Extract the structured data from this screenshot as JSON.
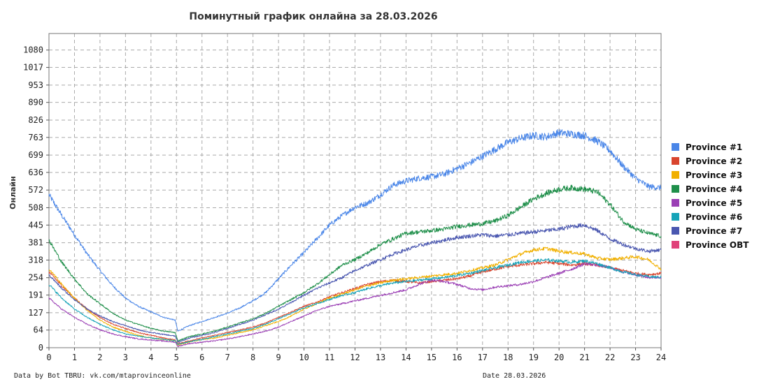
{
  "chart_data": {
    "type": "line",
    "title": "Поминутный график онлайна за 28.03.2026",
    "ylabel": "Онлайн",
    "xlabel": "",
    "xlim": [
      0,
      24
    ],
    "ylim": [
      0,
      1140
    ],
    "x_ticks": [
      0,
      1,
      2,
      3,
      4,
      5,
      6,
      7,
      8,
      9,
      10,
      11,
      12,
      13,
      14,
      15,
      16,
      17,
      18,
      19,
      20,
      21,
      22,
      23,
      24
    ],
    "y_ticks": [
      0,
      64,
      127,
      191,
      254,
      318,
      381,
      445,
      508,
      572,
      636,
      699,
      763,
      826,
      890,
      953,
      1017,
      1080
    ],
    "grid": true,
    "legend_position": "right",
    "series": [
      {
        "name": "Province #1",
        "color": "#4a86e8",
        "x": [
          0,
          0.5,
          1,
          1.5,
          2,
          2.5,
          3,
          3.5,
          4,
          4.5,
          4.95,
          5.05,
          5.5,
          6,
          6.5,
          7,
          7.5,
          8,
          8.5,
          9,
          9.5,
          10,
          10.5,
          11,
          11.5,
          12,
          12.5,
          13,
          13.5,
          14,
          14.5,
          15,
          15.5,
          16,
          16.5,
          17,
          17.5,
          18,
          18.5,
          19,
          19.5,
          20,
          20.5,
          21,
          21.5,
          22,
          22.5,
          23,
          23.5,
          24
        ],
        "y": [
          555,
          480,
          410,
          340,
          280,
          225,
          180,
          150,
          130,
          110,
          100,
          60,
          80,
          95,
          110,
          125,
          145,
          170,
          200,
          250,
          300,
          345,
          395,
          445,
          480,
          510,
          525,
          555,
          590,
          605,
          615,
          620,
          630,
          650,
          670,
          695,
          720,
          745,
          760,
          770,
          765,
          780,
          775,
          770,
          750,
          715,
          660,
          615,
          585,
          580
        ]
      },
      {
        "name": "Province #2",
        "color": "#d9452e",
        "x": [
          0,
          0.5,
          1,
          1.5,
          2,
          2.5,
          3,
          3.5,
          4,
          4.5,
          4.95,
          5.05,
          5.5,
          6,
          6.5,
          7,
          7.5,
          8,
          8.5,
          9,
          9.5,
          10,
          10.5,
          11,
          11.5,
          12,
          12.5,
          13,
          13.5,
          14,
          14.5,
          15,
          15.5,
          16,
          16.5,
          17,
          17.5,
          18,
          18.5,
          19,
          19.5,
          20,
          20.5,
          21,
          21.5,
          22,
          22.5,
          23,
          23.5,
          24
        ],
        "y": [
          275,
          225,
          180,
          140,
          110,
          85,
          70,
          55,
          45,
          35,
          28,
          15,
          25,
          35,
          45,
          55,
          65,
          75,
          90,
          110,
          130,
          150,
          165,
          185,
          200,
          215,
          230,
          240,
          245,
          240,
          235,
          240,
          245,
          250,
          260,
          275,
          285,
          295,
          300,
          305,
          310,
          305,
          300,
          305,
          300,
          290,
          280,
          270,
          265,
          270
        ]
      },
      {
        "name": "Province #3",
        "color": "#f1b000",
        "x": [
          0,
          0.5,
          1,
          1.5,
          2,
          2.5,
          3,
          3.5,
          4,
          4.5,
          4.95,
          5.05,
          5.5,
          6,
          6.5,
          7,
          7.5,
          8,
          8.5,
          9,
          9.5,
          10,
          10.5,
          11,
          11.5,
          12,
          12.5,
          13,
          13.5,
          14,
          14.5,
          15,
          15.5,
          16,
          16.5,
          17,
          17.5,
          18,
          18.5,
          19,
          19.5,
          20,
          20.5,
          21,
          21.5,
          22,
          22.5,
          23,
          23.5,
          24
        ],
        "y": [
          285,
          230,
          180,
          135,
          100,
          75,
          60,
          45,
          35,
          30,
          25,
          10,
          20,
          30,
          35,
          45,
          55,
          65,
          80,
          95,
          115,
          140,
          160,
          180,
          195,
          210,
          225,
          235,
          245,
          250,
          255,
          260,
          265,
          270,
          280,
          290,
          300,
          320,
          340,
          355,
          360,
          350,
          345,
          340,
          325,
          320,
          325,
          330,
          320,
          285
        ]
      },
      {
        "name": "Province #4",
        "color": "#1f8f4a",
        "x": [
          0,
          0.5,
          1,
          1.5,
          2,
          2.5,
          3,
          3.5,
          4,
          4.5,
          4.95,
          5.05,
          5.5,
          6,
          6.5,
          7,
          7.5,
          8,
          8.5,
          9,
          9.5,
          10,
          10.5,
          11,
          11.5,
          12,
          12.5,
          13,
          13.5,
          14,
          14.5,
          15,
          15.5,
          16,
          16.5,
          17,
          17.5,
          18,
          18.5,
          19,
          19.5,
          20,
          20.5,
          21,
          21.5,
          22,
          22.5,
          23,
          23.5,
          24
        ],
        "y": [
          390,
          310,
          250,
          195,
          160,
          125,
          100,
          85,
          70,
          60,
          55,
          25,
          40,
          50,
          60,
          75,
          90,
          105,
          125,
          150,
          175,
          200,
          230,
          265,
          300,
          320,
          345,
          375,
          395,
          415,
          420,
          425,
          430,
          440,
          445,
          450,
          460,
          480,
          510,
          540,
          560,
          575,
          580,
          575,
          565,
          520,
          460,
          430,
          415,
          405
        ]
      },
      {
        "name": "Province #5",
        "color": "#9b3fb5",
        "x": [
          0,
          0.5,
          1,
          1.5,
          2,
          2.5,
          3,
          3.5,
          4,
          4.5,
          4.95,
          5.05,
          5.5,
          6,
          6.5,
          7,
          7.5,
          8,
          8.5,
          9,
          9.5,
          10,
          10.5,
          11,
          11.5,
          12,
          12.5,
          13,
          13.5,
          14,
          14.5,
          15,
          15.5,
          16,
          16.5,
          17,
          17.5,
          18,
          18.5,
          19,
          19.5,
          20,
          20.5,
          21,
          21.5,
          22,
          22.5,
          23,
          23.5,
          24
        ],
        "y": [
          180,
          140,
          110,
          85,
          65,
          50,
          40,
          32,
          28,
          24,
          20,
          5,
          15,
          20,
          25,
          32,
          40,
          50,
          60,
          75,
          95,
          115,
          135,
          150,
          160,
          170,
          180,
          190,
          200,
          210,
          230,
          245,
          240,
          230,
          215,
          210,
          220,
          225,
          230,
          240,
          255,
          270,
          285,
          305,
          300,
          290,
          275,
          265,
          255,
          255
        ]
      },
      {
        "name": "Province #6",
        "color": "#16a3b8",
        "x": [
          0,
          0.5,
          1,
          1.5,
          2,
          2.5,
          3,
          3.5,
          4,
          4.5,
          4.95,
          5.05,
          5.5,
          6,
          6.5,
          7,
          7.5,
          8,
          8.5,
          9,
          9.5,
          10,
          10.5,
          11,
          11.5,
          12,
          12.5,
          13,
          13.5,
          14,
          14.5,
          15,
          15.5,
          16,
          16.5,
          17,
          17.5,
          18,
          18.5,
          19,
          19.5,
          20,
          20.5,
          21,
          21.5,
          22,
          22.5,
          23,
          23.5,
          24
        ],
        "y": [
          230,
          180,
          140,
          110,
          85,
          65,
          50,
          42,
          35,
          30,
          25,
          12,
          22,
          30,
          40,
          50,
          60,
          70,
          85,
          105,
          125,
          145,
          160,
          175,
          190,
          200,
          215,
          225,
          235,
          240,
          245,
          250,
          255,
          262,
          270,
          280,
          290,
          300,
          310,
          315,
          318,
          315,
          310,
          315,
          305,
          290,
          275,
          265,
          258,
          255
        ]
      },
      {
        "name": "Province #7",
        "color": "#4a57b0",
        "x": [
          0,
          0.5,
          1,
          1.5,
          2,
          2.5,
          3,
          3.5,
          4,
          4.5,
          4.95,
          5.05,
          5.5,
          6,
          6.5,
          7,
          7.5,
          8,
          8.5,
          9,
          9.5,
          10,
          10.5,
          11,
          11.5,
          12,
          12.5,
          13,
          13.5,
          14,
          14.5,
          15,
          15.5,
          16,
          16.5,
          17,
          17.5,
          18,
          18.5,
          19,
          19.5,
          20,
          20.5,
          21,
          21.5,
          22,
          22.5,
          23,
          23.5,
          24
        ],
        "y": [
          265,
          215,
          175,
          140,
          115,
          95,
          80,
          65,
          55,
          48,
          42,
          20,
          35,
          45,
          55,
          70,
          85,
          100,
          120,
          140,
          165,
          190,
          215,
          235,
          255,
          280,
          300,
          320,
          340,
          355,
          370,
          380,
          390,
          400,
          405,
          410,
          405,
          410,
          415,
          420,
          425,
          430,
          440,
          445,
          425,
          395,
          375,
          360,
          350,
          355
        ]
      },
      {
        "name": "Province OBT",
        "color": "#e0427a",
        "x": [],
        "y": []
      }
    ]
  },
  "footer": {
    "source": "Data by Bot TBRU: vk.com/mtaprovinceonline",
    "date": "Date 28.03.2026"
  }
}
